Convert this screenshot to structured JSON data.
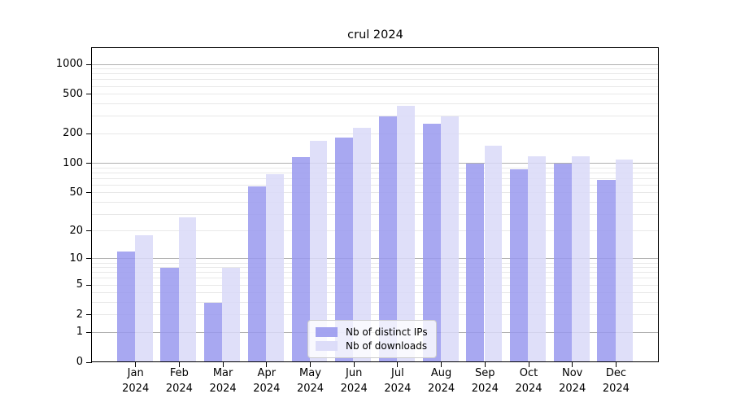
{
  "chart_data": {
    "type": "bar",
    "title": "crul 2024",
    "categories": [
      "Jan 2024",
      "Feb 2024",
      "Mar 2024",
      "Apr 2024",
      "May 2024",
      "Jun 2024",
      "Jul 2024",
      "Aug 2024",
      "Sep 2024",
      "Oct 2024",
      "Nov 2024",
      "Dec 2024"
    ],
    "x_tick_months": [
      "Jan",
      "Feb",
      "Mar",
      "Apr",
      "May",
      "Jun",
      "Jul",
      "Aug",
      "Sep",
      "Oct",
      "Nov",
      "Dec"
    ],
    "x_tick_year": "2024",
    "series": [
      {
        "name": "Nb of distinct IPs",
        "color": "#9999ee",
        "values": [
          12,
          8,
          3,
          58,
          116,
          181,
          297,
          252,
          100,
          86,
          99,
          68
        ]
      },
      {
        "name": "Nb of downloads",
        "color": "#d9d9f8",
        "values": [
          18,
          28,
          8,
          77,
          169,
          229,
          378,
          299,
          150,
          117,
          118,
          108
        ]
      }
    ],
    "yscale": "log1p",
    "yticks": [
      0,
      1,
      2,
      5,
      10,
      20,
      50,
      100,
      200,
      500,
      1000
    ],
    "major_gridlines": [
      1,
      10,
      100,
      1000
    ],
    "minor_gridline_decades": [
      1,
      10,
      100
    ],
    "ylim": [
      0,
      1500
    ],
    "grid": true,
    "legend_position": "lower center inside",
    "colors": {
      "bar_dark": "#9999ee",
      "bar_light": "#d9d9f8",
      "major_grid": "#b0b0b0",
      "minor_grid": "#e8e8e8",
      "axis": "#000000",
      "background": "#ffffff"
    }
  }
}
